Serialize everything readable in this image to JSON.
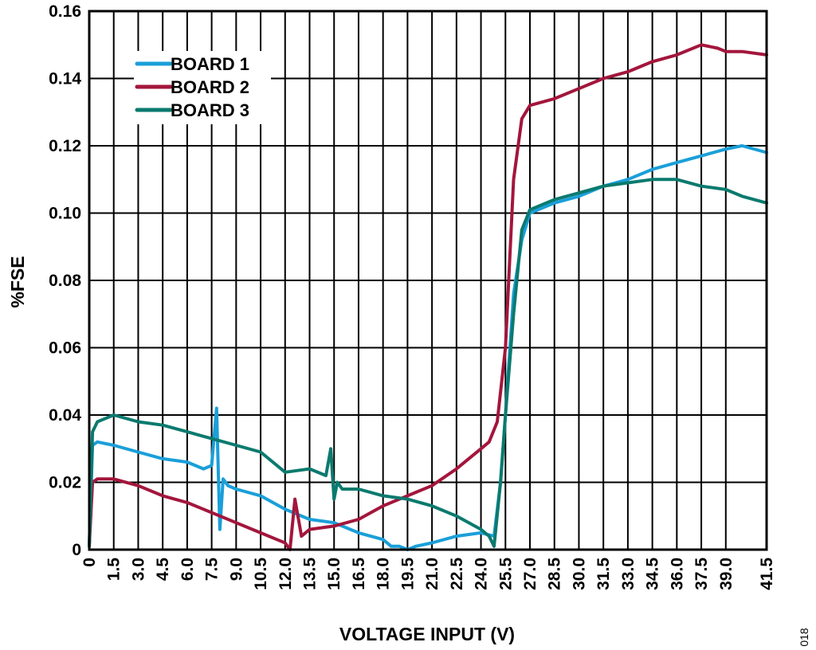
{
  "figure_id": "018",
  "chart_data": {
    "type": "line",
    "xlabel": "VOLTAGE INPUT (V)",
    "ylabel": "%FSE",
    "xlim": [
      0,
      41.5
    ],
    "ylim": [
      0,
      0.16
    ],
    "grid": true,
    "legend_position": "top-left",
    "x_ticks": [
      "0",
      "1.5",
      "3.0",
      "4.5",
      "6.0",
      "7.5",
      "9.0",
      "10.5",
      "12.0",
      "13.5",
      "15.0",
      "16.5",
      "18.0",
      "19.5",
      "21.0",
      "22.5",
      "24.0",
      "25.5",
      "27.0",
      "28.5",
      "30.0",
      "31.5",
      "33.0",
      "34.5",
      "36.0",
      "37.5",
      "39.0",
      "41.5"
    ],
    "x_tick_values": [
      0,
      1.5,
      3.0,
      4.5,
      6.0,
      7.5,
      9.0,
      10.5,
      12.0,
      13.5,
      15.0,
      16.5,
      18.0,
      19.5,
      21.0,
      22.5,
      24.0,
      25.5,
      27.0,
      28.5,
      30.0,
      31.5,
      33.0,
      34.5,
      36.0,
      37.5,
      39.0,
      41.5
    ],
    "y_ticks": [
      "0",
      "0.02",
      "0.04",
      "0.06",
      "0.08",
      "0.10",
      "0.12",
      "0.14",
      "0.16"
    ],
    "y_tick_values": [
      0,
      0.02,
      0.04,
      0.06,
      0.08,
      0.1,
      0.12,
      0.14,
      0.16
    ],
    "series": [
      {
        "name": "BOARD 1",
        "color": "#1a9fd9",
        "x": [
          0,
          0.2,
          0.5,
          1.5,
          3.0,
          4.5,
          6.0,
          7.0,
          7.5,
          7.8,
          8.0,
          8.2,
          8.5,
          9.0,
          10.5,
          12.0,
          13.5,
          15.0,
          16.5,
          18.0,
          18.5,
          19.0,
          19.5,
          20.0,
          21.0,
          22.5,
          24.0,
          24.8,
          25.2,
          25.5,
          26.0,
          26.5,
          27.0,
          28.5,
          30.0,
          31.5,
          33.0,
          34.5,
          36.0,
          37.5,
          39.0,
          40.0,
          41.5
        ],
        "y": [
          0.001,
          0.031,
          0.032,
          0.031,
          0.029,
          0.027,
          0.026,
          0.024,
          0.025,
          0.042,
          0.006,
          0.021,
          0.019,
          0.018,
          0.016,
          0.012,
          0.009,
          0.008,
          0.005,
          0.003,
          0.001,
          0.001,
          0.0,
          0.001,
          0.002,
          0.004,
          0.005,
          0.004,
          0.02,
          0.04,
          0.076,
          0.092,
          0.1,
          0.103,
          0.105,
          0.108,
          0.11,
          0.113,
          0.115,
          0.117,
          0.119,
          0.12,
          0.118
        ]
      },
      {
        "name": "BOARD 2",
        "color": "#a3163c",
        "x": [
          0,
          0.2,
          0.5,
          1.5,
          3.0,
          4.5,
          6.0,
          7.5,
          9.0,
          10.5,
          11.5,
          12.0,
          12.3,
          12.6,
          13.0,
          13.5,
          15.0,
          16.5,
          18.0,
          19.5,
          21.0,
          22.5,
          24.0,
          24.5,
          25.0,
          25.5,
          26.0,
          26.5,
          27.0,
          28.5,
          30.0,
          31.5,
          33.0,
          34.5,
          36.0,
          37.5,
          38.5,
          39.0,
          40.0,
          41.5
        ],
        "y": [
          0.001,
          0.02,
          0.021,
          0.021,
          0.019,
          0.016,
          0.014,
          0.011,
          0.008,
          0.005,
          0.003,
          0.002,
          0.0,
          0.015,
          0.004,
          0.006,
          0.007,
          0.009,
          0.013,
          0.016,
          0.019,
          0.024,
          0.03,
          0.032,
          0.038,
          0.06,
          0.11,
          0.128,
          0.132,
          0.134,
          0.137,
          0.14,
          0.142,
          0.145,
          0.147,
          0.15,
          0.149,
          0.148,
          0.148,
          0.147
        ]
      },
      {
        "name": "BOARD 3",
        "color": "#0b7a6e",
        "x": [
          0,
          0.2,
          0.5,
          1.5,
          3.0,
          4.5,
          6.0,
          7.5,
          9.0,
          10.5,
          12.0,
          13.5,
          14.5,
          14.8,
          15.0,
          15.2,
          15.5,
          16.5,
          18.0,
          19.5,
          21.0,
          22.5,
          24.0,
          24.5,
          24.8,
          25.2,
          25.5,
          26.0,
          26.5,
          27.0,
          28.5,
          30.0,
          31.5,
          33.0,
          34.5,
          36.0,
          37.5,
          39.0,
          40.0,
          41.5
        ],
        "y": [
          0.001,
          0.035,
          0.038,
          0.04,
          0.038,
          0.037,
          0.035,
          0.033,
          0.031,
          0.029,
          0.023,
          0.024,
          0.022,
          0.03,
          0.015,
          0.02,
          0.018,
          0.018,
          0.016,
          0.015,
          0.013,
          0.01,
          0.006,
          0.004,
          0.001,
          0.02,
          0.04,
          0.07,
          0.095,
          0.101,
          0.104,
          0.106,
          0.108,
          0.109,
          0.11,
          0.11,
          0.108,
          0.107,
          0.105,
          0.103
        ]
      }
    ]
  }
}
